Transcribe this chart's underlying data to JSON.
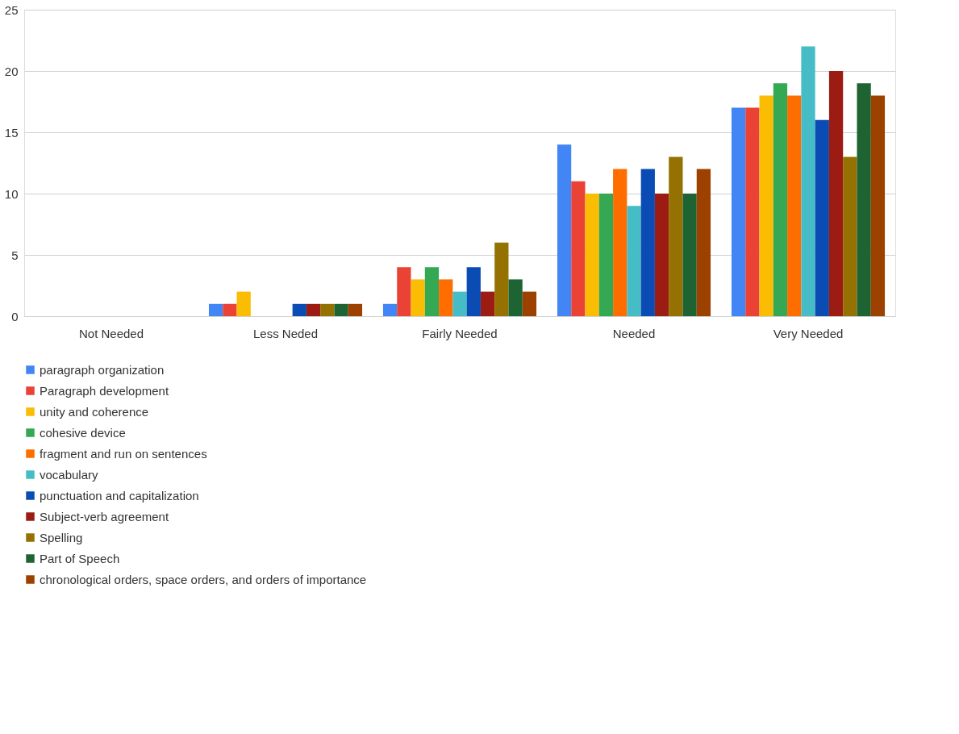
{
  "chart_data": {
    "type": "bar",
    "categories": [
      "Not Needed",
      "Less Neded",
      "Fairly Needed",
      "Needed",
      "Very Needed"
    ],
    "series": [
      {
        "name": "paragraph organization",
        "color": "#4285f4",
        "values": [
          0,
          1,
          1,
          14,
          17
        ]
      },
      {
        "name": "Paragraph development",
        "color": "#ea4335",
        "values": [
          0,
          1,
          4,
          11,
          17
        ]
      },
      {
        "name": "unity and coherence",
        "color": "#fbbc04",
        "values": [
          0,
          2,
          3,
          10,
          18
        ]
      },
      {
        "name": "cohesive device",
        "color": "#34a853",
        "values": [
          0,
          0,
          4,
          10,
          19
        ]
      },
      {
        "name": "fragment and run on sentences",
        "color": "#ff6d01",
        "values": [
          0,
          0,
          3,
          12,
          18
        ]
      },
      {
        "name": "vocabulary",
        "color": "#46bdc6",
        "values": [
          0,
          0,
          2,
          9,
          22
        ]
      },
      {
        "name": "punctuation and capitalization",
        "color": "#0b4cb4",
        "values": [
          0,
          1,
          4,
          12,
          16
        ]
      },
      {
        "name": "Subject-verb agreement",
        "color": "#9c1c13",
        "values": [
          0,
          1,
          2,
          10,
          20
        ]
      },
      {
        "name": "Spelling",
        "color": "#947100",
        "values": [
          0,
          1,
          6,
          13,
          13
        ]
      },
      {
        "name": "Part of Speech",
        "color": "#1e6332",
        "values": [
          0,
          1,
          3,
          10,
          19
        ]
      },
      {
        "name": "chronological orders, space orders, and orders of importance",
        "color": "#9c4100",
        "values": [
          0,
          1,
          2,
          12,
          18
        ]
      }
    ],
    "ylim": [
      0,
      25
    ],
    "yticks": [
      0,
      5,
      10,
      15,
      20,
      25
    ],
    "grid": "y",
    "legend": "bottom"
  }
}
